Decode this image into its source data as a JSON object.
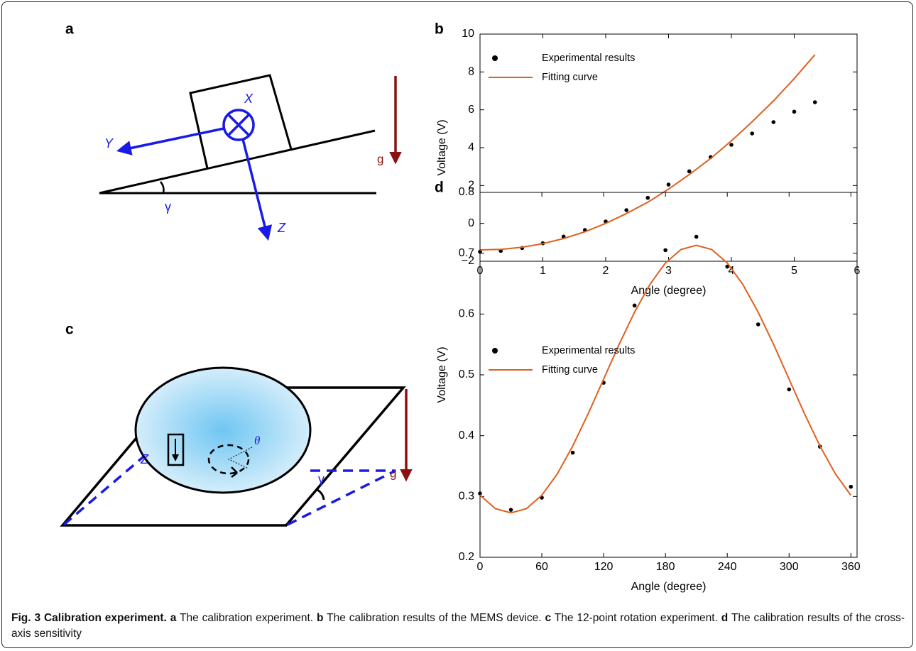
{
  "diagrams": {
    "a": {
      "panel_label": "a",
      "labels": {
        "x_axis": "X",
        "y_axis": "Y",
        "z_axis": "Z",
        "angle": "γ",
        "gravity": "g"
      }
    },
    "c": {
      "panel_label": "c",
      "labels": {
        "rotation": "θ",
        "z_axis": "Z",
        "angle": "γ",
        "gravity": "g"
      }
    }
  },
  "chart_data": [
    {
      "type": "scatter",
      "panel_label": "b",
      "x_label": "Angle (degree)",
      "y_label": "Voltage (V)",
      "xlim": [
        0,
        6
      ],
      "xticks": [
        0,
        1,
        2,
        3,
        4,
        5,
        6
      ],
      "ylim": [
        -2,
        10
      ],
      "yticks": [
        {
          "value": -2,
          "label": "−2"
        },
        0,
        2,
        4,
        6,
        8,
        10
      ],
      "legend": "upper-left",
      "series": [
        {
          "name": "Experimental results",
          "color": "#000000",
          "mode": "markers",
          "x": [
            0,
            0.33,
            0.67,
            1,
            1.33,
            1.67,
            2,
            2.33,
            2.67,
            3,
            3.33,
            3.67,
            4,
            4.33,
            4.67,
            5,
            5.33
          ],
          "values": [
            -1.5,
            -1.45,
            -1.3,
            -1.05,
            -0.7,
            -0.35,
            0.1,
            0.7,
            1.35,
            2.05,
            2.75,
            3.5,
            4.15,
            4.75,
            5.35,
            5.9,
            6.4
          ]
        },
        {
          "name": "Fitting curve",
          "color": "#e0601e",
          "mode": "line",
          "x": [
            0,
            0.33,
            0.67,
            1,
            1.33,
            1.67,
            2,
            2.33,
            2.67,
            3,
            3.33,
            3.67,
            4,
            4.33,
            4.67,
            5,
            5.33
          ],
          "values": [
            -1.4,
            -1.37,
            -1.26,
            -1.07,
            -0.8,
            -0.44,
            0,
            0.52,
            1.12,
            1.81,
            2.58,
            3.43,
            4.36,
            5.37,
            6.47,
            7.65,
            8.91
          ]
        }
      ]
    },
    {
      "type": "scatter",
      "panel_label": "d",
      "x_label": "Angle (degree)",
      "y_label": "Voltage (V)",
      "xlim": [
        0,
        366
      ],
      "xticks": [
        0,
        60,
        120,
        180,
        240,
        300,
        360
      ],
      "ylim": [
        0.2,
        0.8
      ],
      "yticks": [
        0.2,
        0.3,
        0.4,
        0.5,
        0.6,
        0.7,
        0.8
      ],
      "legend": "upper-left",
      "series": [
        {
          "name": "Experimental results",
          "color": "#000000",
          "mode": "markers",
          "x": [
            0,
            30,
            60,
            90,
            120,
            150,
            180,
            210,
            240,
            270,
            300,
            330,
            360
          ],
          "values": [
            0.305,
            0.278,
            0.298,
            0.372,
            0.487,
            0.614,
            0.705,
            0.727,
            0.678,
            0.583,
            0.476,
            0.382,
            0.316
          ]
        },
        {
          "name": "Fitting curve",
          "color": "#e0601e",
          "mode": "line",
          "x": [
            0,
            15,
            30,
            45,
            60,
            75,
            90,
            105,
            120,
            135,
            150,
            165,
            180,
            195,
            210,
            225,
            240,
            255,
            270,
            285,
            300,
            315,
            330,
            345,
            360
          ],
          "values": [
            0.302,
            0.28,
            0.273,
            0.28,
            0.302,
            0.337,
            0.383,
            0.436,
            0.493,
            0.55,
            0.603,
            0.649,
            0.684,
            0.706,
            0.713,
            0.706,
            0.684,
            0.649,
            0.603,
            0.55,
            0.493,
            0.436,
            0.383,
            0.337,
            0.302
          ]
        }
      ]
    }
  ],
  "caption": {
    "title": "Fig. 3 Calibration experiment.",
    "parts": [
      {
        "label": "a",
        "text": "The calibration experiment."
      },
      {
        "label": "b",
        "text": "The calibration results of the MEMS device."
      },
      {
        "label": "c",
        "text": "The 12-point rotation experiment."
      },
      {
        "label": "d",
        "text": "The calibration results of the cross-axis sensitivity"
      }
    ]
  }
}
